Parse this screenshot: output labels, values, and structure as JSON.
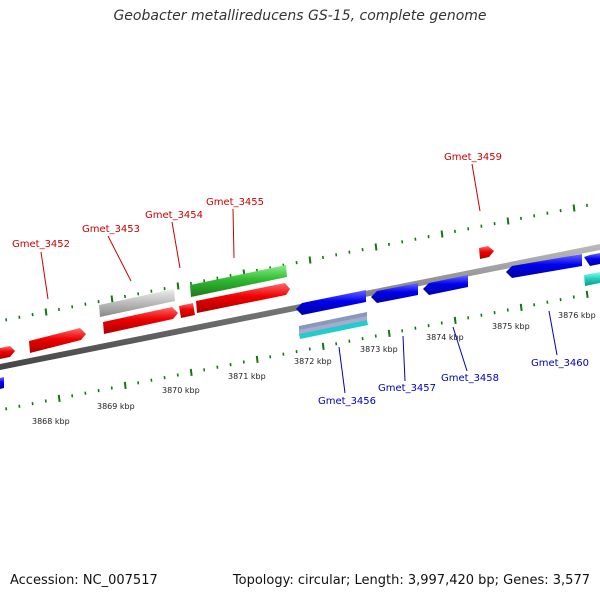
{
  "title": "Geobacter metallireducens GS-15, complete genome",
  "footer": {
    "accession": "Accession: NC_007517",
    "summary": "Topology: circular; Length: 3,997,420 bp; Genes: 3,577"
  },
  "kbp_labels": [
    "3868 kbp",
    "3869 kbp",
    "3870 kbp",
    "3871 kbp",
    "3872 kbp",
    "3873 kbp",
    "3874 kbp",
    "3875 kbp",
    "3876 kbp"
  ],
  "gene_labels": [
    {
      "name": "Gmet_3452",
      "strand": "forward"
    },
    {
      "name": "Gmet_3453",
      "strand": "forward"
    },
    {
      "name": "Gmet_3454",
      "strand": "forward"
    },
    {
      "name": "Gmet_3455",
      "strand": "forward"
    },
    {
      "name": "Gmet_3459",
      "strand": "forward"
    },
    {
      "name": "Gmet_3456",
      "strand": "reverse"
    },
    {
      "name": "Gmet_3457",
      "strand": "reverse"
    },
    {
      "name": "Gmet_3458",
      "strand": "reverse"
    },
    {
      "name": "Gmet_3460",
      "strand": "reverse"
    }
  ],
  "colors": {
    "forward_gene": "#e00000",
    "reverse_gene": "#0000dd",
    "rna_gene": "#33bb33",
    "pseudo_gene": "#bbbbbb",
    "other_gene": "#22ccaa",
    "backbone": "#777777",
    "tick": "#117711"
  }
}
